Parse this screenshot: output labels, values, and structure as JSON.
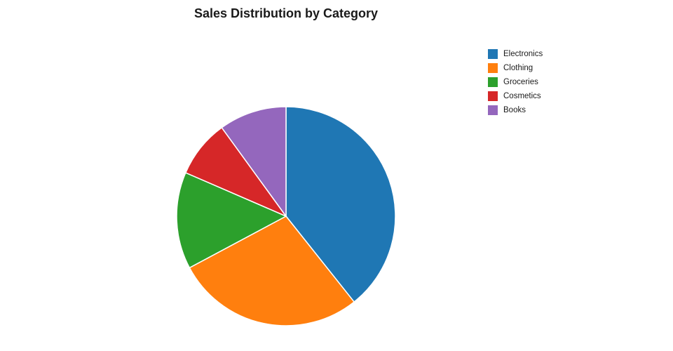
{
  "title": "Sales Distribution by Category",
  "legend": {
    "position": "top-right",
    "items": [
      {
        "label": "Electronics",
        "color": "#1f77b4"
      },
      {
        "label": "Clothing",
        "color": "#ff7f0e"
      },
      {
        "label": "Groceries",
        "color": "#2ca02c"
      },
      {
        "label": "Cosmetics",
        "color": "#d62728"
      },
      {
        "label": "Books",
        "color": "#9467bd"
      }
    ]
  },
  "chart_data": {
    "type": "pie",
    "title": "Sales Distribution by Category",
    "categories": [
      "Electronics",
      "Clothing",
      "Groceries",
      "Cosmetics",
      "Books"
    ],
    "values": [
      39.3,
      27.9,
      14.3,
      8.5,
      10.0
    ],
    "unit": "percent (estimated from slice angles)",
    "colors": [
      "#1f77b4",
      "#ff7f0e",
      "#2ca02c",
      "#d62728",
      "#9467bd"
    ],
    "start_angle": "12 o'clock",
    "direction": "clockwise",
    "slice_edge_color": "#ffffff",
    "legend_position": "right",
    "background": "#ffffff"
  }
}
